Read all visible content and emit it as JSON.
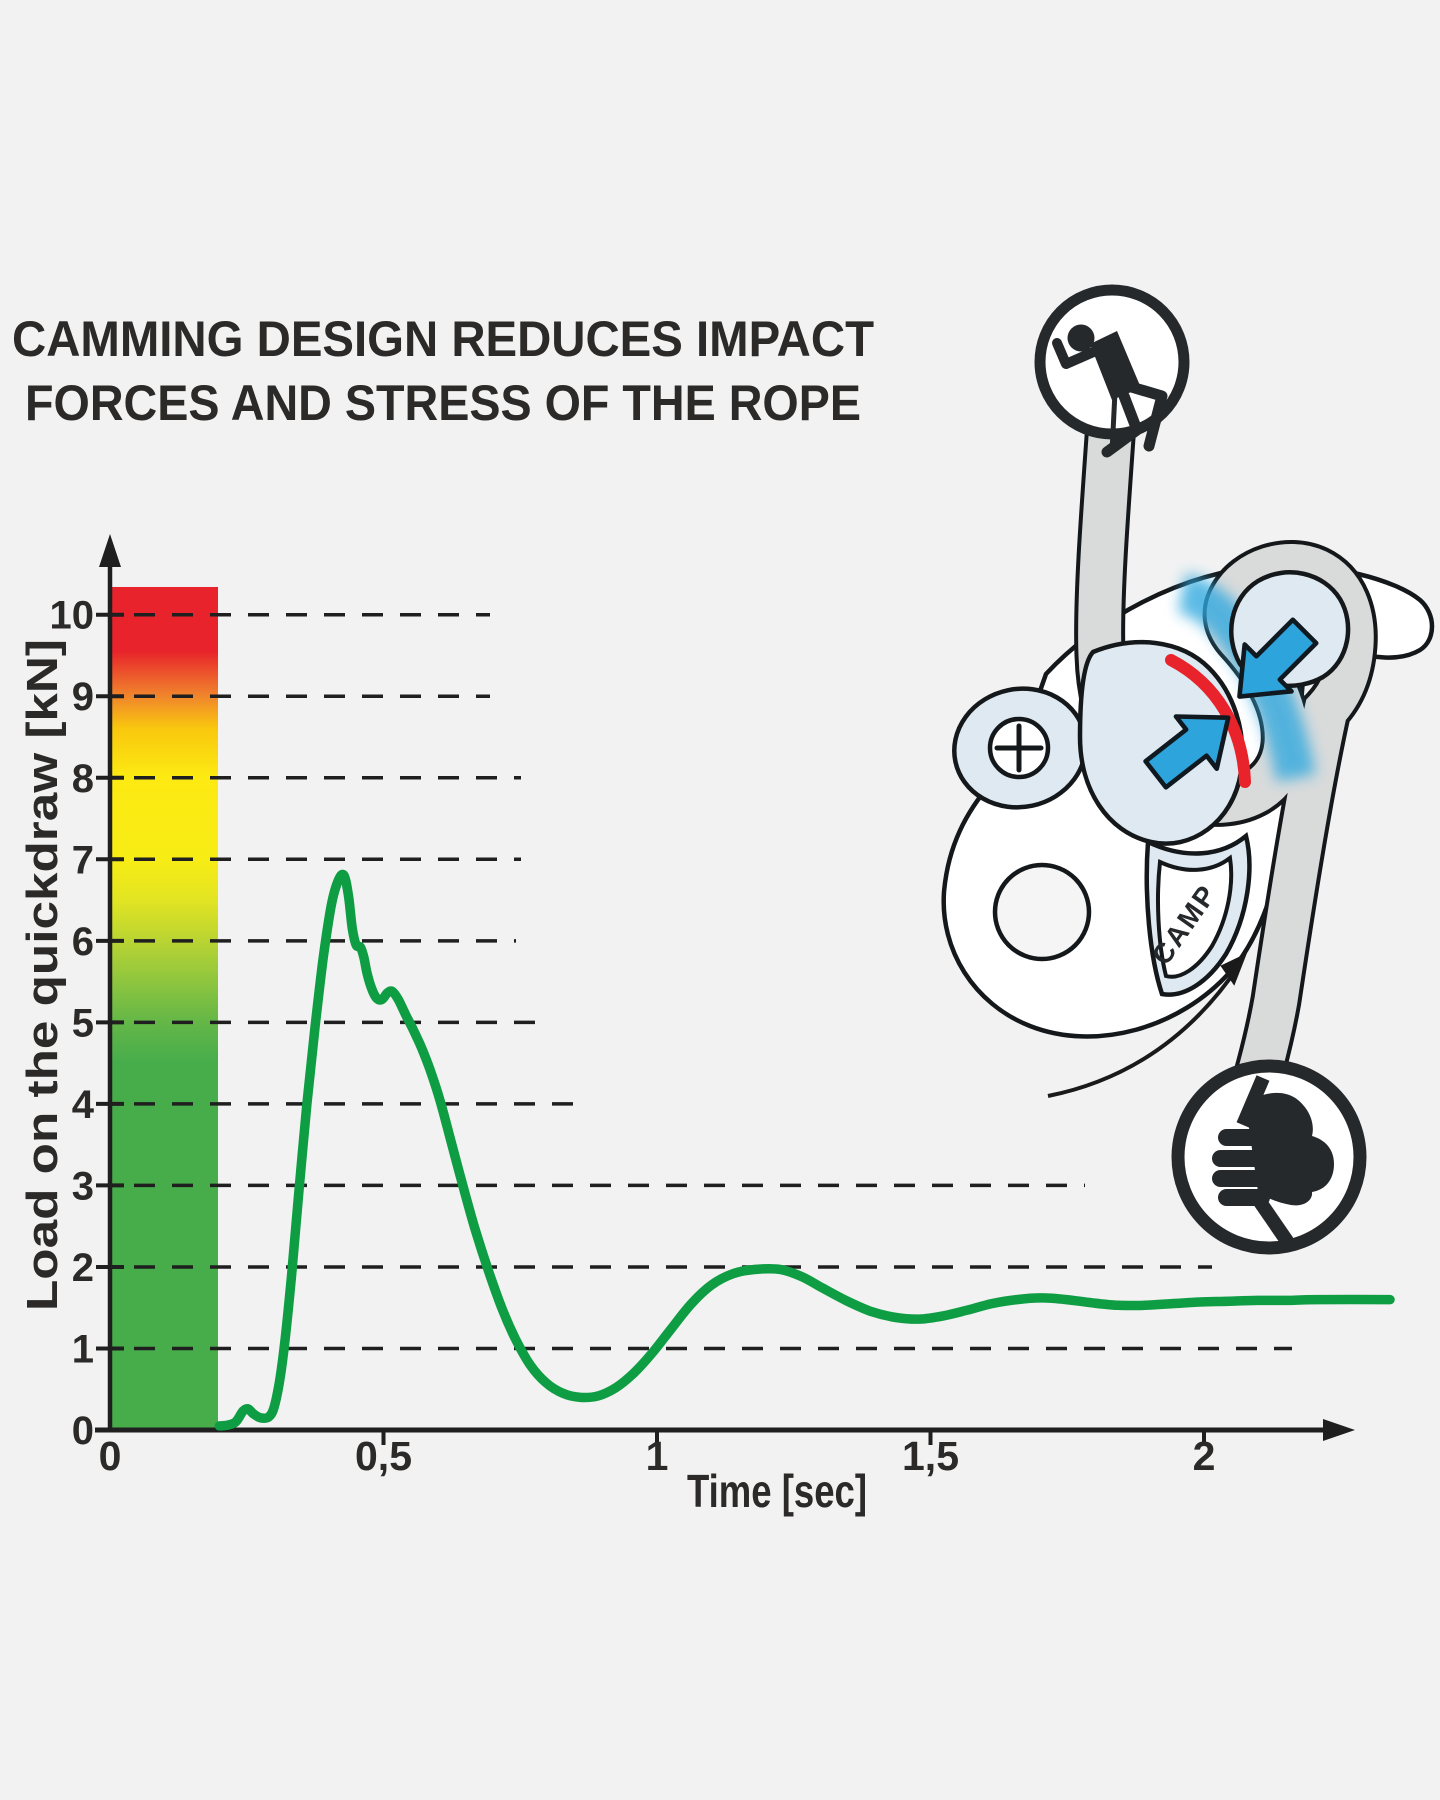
{
  "title": {
    "line1": "CAMMING DESIGN REDUCES IMPACT",
    "line2": "FORCES AND STRESS OF THE ROPE"
  },
  "chart_data": {
    "type": "line",
    "title": "CAMMING DESIGN REDUCES IMPACT FORCES AND STRESS OF THE ROPE",
    "xlabel": "Time [sec]",
    "ylabel": "Load on the quickdraw [kN]",
    "xlim": [
      0,
      2.34
    ],
    "ylim": [
      0,
      10.34
    ],
    "grid": "dashed-horizontal",
    "legend": "none",
    "x_ticks": [
      {
        "v": 0,
        "label": "0"
      },
      {
        "v": 0.5,
        "label": "0,5"
      },
      {
        "v": 1,
        "label": "1"
      },
      {
        "v": 1.5,
        "label": "1,5"
      },
      {
        "v": 2,
        "label": "2"
      }
    ],
    "y_ticks": [
      {
        "v": 0,
        "label": "0"
      },
      {
        "v": 1,
        "label": "1"
      },
      {
        "v": 2,
        "label": "2"
      },
      {
        "v": 3,
        "label": "3"
      },
      {
        "v": 4,
        "label": "4"
      },
      {
        "v": 5,
        "label": "5"
      },
      {
        "v": 6,
        "label": "6"
      },
      {
        "v": 7,
        "label": "7"
      },
      {
        "v": 8,
        "label": "8"
      },
      {
        "v": 9,
        "label": "9"
      },
      {
        "v": 10,
        "label": "10"
      }
    ],
    "series": [
      {
        "name": "Load on the quickdraw",
        "color": "#0f9d44",
        "points": [
          [
            0.2,
            0.05
          ],
          [
            0.215,
            0.06
          ],
          [
            0.23,
            0.1
          ],
          [
            0.243,
            0.23
          ],
          [
            0.252,
            0.26
          ],
          [
            0.262,
            0.2
          ],
          [
            0.275,
            0.15
          ],
          [
            0.29,
            0.16
          ],
          [
            0.3,
            0.28
          ],
          [
            0.31,
            0.6
          ],
          [
            0.32,
            1.1
          ],
          [
            0.332,
            1.9
          ],
          [
            0.345,
            2.9
          ],
          [
            0.36,
            4.0
          ],
          [
            0.375,
            4.95
          ],
          [
            0.39,
            5.8
          ],
          [
            0.405,
            6.45
          ],
          [
            0.418,
            6.75
          ],
          [
            0.428,
            6.8
          ],
          [
            0.436,
            6.55
          ],
          [
            0.443,
            6.15
          ],
          [
            0.45,
            5.95
          ],
          [
            0.458,
            5.92
          ],
          [
            0.464,
            5.8
          ],
          [
            0.47,
            5.6
          ],
          [
            0.478,
            5.42
          ],
          [
            0.487,
            5.3
          ],
          [
            0.497,
            5.28
          ],
          [
            0.507,
            5.36
          ],
          [
            0.516,
            5.38
          ],
          [
            0.527,
            5.28
          ],
          [
            0.54,
            5.1
          ],
          [
            0.555,
            4.9
          ],
          [
            0.57,
            4.68
          ],
          [
            0.585,
            4.42
          ],
          [
            0.603,
            4.05
          ],
          [
            0.623,
            3.55
          ],
          [
            0.645,
            3.0
          ],
          [
            0.668,
            2.45
          ],
          [
            0.692,
            1.95
          ],
          [
            0.716,
            1.5
          ],
          [
            0.741,
            1.12
          ],
          [
            0.768,
            0.8
          ],
          [
            0.797,
            0.58
          ],
          [
            0.828,
            0.45
          ],
          [
            0.86,
            0.4
          ],
          [
            0.893,
            0.42
          ],
          [
            0.925,
            0.52
          ],
          [
            0.958,
            0.7
          ],
          [
            0.992,
            0.95
          ],
          [
            1.027,
            1.25
          ],
          [
            1.063,
            1.55
          ],
          [
            1.1,
            1.78
          ],
          [
            1.14,
            1.92
          ],
          [
            1.18,
            1.97
          ],
          [
            1.225,
            1.97
          ],
          [
            1.265,
            1.88
          ],
          [
            1.303,
            1.74
          ],
          [
            1.348,
            1.58
          ],
          [
            1.393,
            1.45
          ],
          [
            1.437,
            1.38
          ],
          [
            1.48,
            1.36
          ],
          [
            1.523,
            1.4
          ],
          [
            1.567,
            1.47
          ],
          [
            1.612,
            1.55
          ],
          [
            1.658,
            1.6
          ],
          [
            1.703,
            1.62
          ],
          [
            1.748,
            1.6
          ],
          [
            1.795,
            1.56
          ],
          [
            1.843,
            1.53
          ],
          [
            1.892,
            1.53
          ],
          [
            1.942,
            1.55
          ],
          [
            1.993,
            1.57
          ],
          [
            2.045,
            1.58
          ],
          [
            2.098,
            1.59
          ],
          [
            2.152,
            1.59
          ],
          [
            2.207,
            1.6
          ],
          [
            2.34,
            1.6
          ]
        ]
      }
    ],
    "scale_bar": {
      "description": "color scale bar from green (low load) to red (high load)",
      "x_range_sec": [
        0,
        0.2
      ],
      "top_value_kN": 10.34,
      "stops": [
        [
          0.0,
          "#47ad4b"
        ],
        [
          0.435,
          "#47ad4b"
        ],
        [
          0.484,
          "#65b747"
        ],
        [
          0.532,
          "#8fc63e"
        ],
        [
          0.58,
          "#bad432"
        ],
        [
          0.629,
          "#e3e522"
        ],
        [
          0.677,
          "#f8ec15"
        ],
        [
          0.774,
          "#fcea12"
        ],
        [
          0.832,
          "#f9c70e"
        ],
        [
          0.87,
          "#f0862c"
        ],
        [
          0.924,
          "#e8232b"
        ],
        [
          1.0,
          "#e8232b"
        ]
      ]
    }
  },
  "illustration": {
    "camp_logo": "CAMP",
    "icons": [
      "falling-climber-icon",
      "hand-grip-rope-icon",
      "plus-screw-icon",
      "cam-rotation-arrow-icon",
      "force-arrow-icon"
    ]
  },
  "colors": {
    "background": "#f2f2f2",
    "ink": "#2b2a29",
    "curve_green": "#0f9d44",
    "bar_red": "#e8232b",
    "bar_orange": "#f0862c",
    "bar_yellow": "#f8ec15",
    "bar_green": "#47ad4b",
    "arrow_blue": "#2da4db",
    "highlight_red": "#e8232b",
    "device_light_blue": "#dee9f1",
    "rope_gray": "#d9dbdb"
  }
}
